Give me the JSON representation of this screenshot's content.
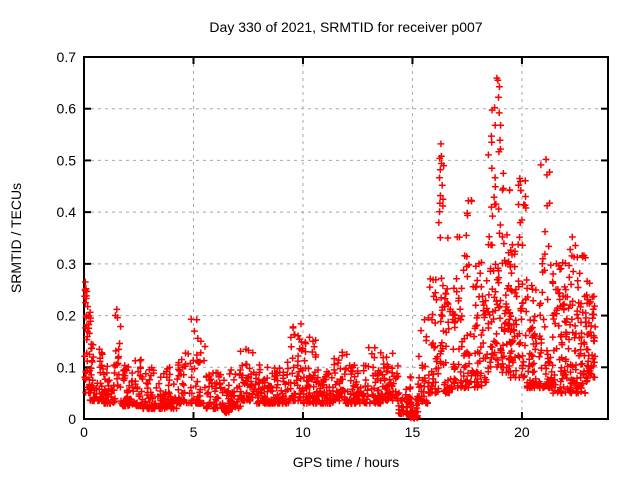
{
  "chart_data": {
    "type": "scatter",
    "title": "Day 330 of 2021, SRMTID for receiver p007",
    "xlabel": "GPS time / hours",
    "ylabel": "SRMTID / TECUs",
    "xlim": [
      0,
      23.93
    ],
    "ylim": [
      0,
      0.7
    ],
    "xticks": [
      0,
      5,
      10,
      15,
      20
    ],
    "xtick_labels": [
      "0",
      "5",
      "10",
      "15",
      "20"
    ],
    "yticks": [
      0,
      0.1,
      0.2,
      0.3,
      0.4,
      0.5,
      0.6,
      0.7
    ],
    "ytick_labels": [
      "0",
      "0.1",
      "0.2",
      "0.3",
      "0.4",
      "0.5",
      "0.6",
      "0.7"
    ],
    "grid": true,
    "legend_position": "none",
    "marker": "plus",
    "marker_color": "#ff0000",
    "grid_color": "#a8a8a8",
    "axis_color": "#000000",
    "background": "#ffffff",
    "bands_format": [
      "x_start",
      "x_end",
      "n_points",
      "y_min",
      "y_max",
      "skew_toward_min"
    ],
    "bands": [
      [
        0.02,
        0.15,
        12,
        0.08,
        0.27,
        1.2
      ],
      [
        0.05,
        0.35,
        32,
        0.05,
        0.22,
        1.5
      ],
      [
        0.25,
        0.85,
        48,
        0.035,
        0.145,
        1.9
      ],
      [
        0.85,
        1.42,
        46,
        0.03,
        0.105,
        2.0
      ],
      [
        1.42,
        1.68,
        15,
        0.06,
        0.215,
        1.3
      ],
      [
        1.68,
        2.65,
        72,
        0.025,
        0.115,
        2.3
      ],
      [
        2.65,
        4.25,
        118,
        0.02,
        0.1,
        2.4
      ],
      [
        4.25,
        4.85,
        40,
        0.03,
        0.13,
        2.1
      ],
      [
        4.85,
        5.55,
        45,
        0.03,
        0.195,
        2.3
      ],
      [
        5.55,
        6.25,
        48,
        0.02,
        0.09,
        2.2
      ],
      [
        6.25,
        6.65,
        28,
        0.012,
        0.075,
        2.0
      ],
      [
        6.65,
        7.15,
        38,
        0.02,
        0.095,
        2.2
      ],
      [
        7.15,
        7.75,
        46,
        0.035,
        0.135,
        2.1
      ],
      [
        7.75,
        8.45,
        52,
        0.03,
        0.105,
        2.2
      ],
      [
        8.45,
        9.35,
        66,
        0.03,
        0.11,
        2.2
      ],
      [
        9.35,
        9.95,
        46,
        0.035,
        0.185,
        2.4
      ],
      [
        9.95,
        10.6,
        50,
        0.03,
        0.16,
        2.6
      ],
      [
        10.6,
        11.4,
        62,
        0.03,
        0.105,
        2.2
      ],
      [
        11.4,
        11.95,
        38,
        0.035,
        0.13,
        2.2
      ],
      [
        11.95,
        12.85,
        66,
        0.03,
        0.105,
        2.2
      ],
      [
        12.85,
        13.55,
        50,
        0.03,
        0.14,
        2.2
      ],
      [
        13.55,
        14.35,
        60,
        0.035,
        0.13,
        2.0
      ],
      [
        14.35,
        14.95,
        40,
        0.008,
        0.085,
        1.8
      ],
      [
        14.9,
        15.25,
        16,
        0.002,
        0.055,
        2.4
      ],
      [
        15.04,
        15.1,
        9,
        0.001,
        0.008,
        1.0
      ],
      [
        15.25,
        15.72,
        32,
        0.03,
        0.195,
        1.9
      ],
      [
        15.72,
        16.2,
        42,
        0.05,
        0.315,
        2.1
      ],
      [
        16.2,
        16.45,
        28,
        0.1,
        0.535,
        1.5
      ],
      [
        16.45,
        16.9,
        42,
        0.05,
        0.26,
        1.9
      ],
      [
        16.9,
        17.3,
        32,
        0.06,
        0.355,
        2.1
      ],
      [
        17.3,
        17.8,
        38,
        0.06,
        0.425,
        2.1
      ],
      [
        17.8,
        18.45,
        58,
        0.06,
        0.31,
        2.1
      ],
      [
        18.45,
        18.8,
        42,
        0.09,
        0.61,
        1.7
      ],
      [
        18.8,
        19.08,
        32,
        0.1,
        0.66,
        1.5
      ],
      [
        19.08,
        19.45,
        46,
        0.09,
        0.53,
        1.8
      ],
      [
        19.45,
        19.82,
        40,
        0.08,
        0.34,
        1.9
      ],
      [
        19.82,
        20.2,
        42,
        0.08,
        0.47,
        1.9
      ],
      [
        20.2,
        20.7,
        52,
        0.06,
        0.31,
        1.9
      ],
      [
        20.7,
        21.3,
        56,
        0.06,
        0.505,
        2.3
      ],
      [
        21.3,
        22.0,
        78,
        0.05,
        0.305,
        1.6
      ],
      [
        22.0,
        22.5,
        56,
        0.05,
        0.355,
        1.8
      ],
      [
        22.5,
        23.0,
        62,
        0.05,
        0.325,
        1.5
      ],
      [
        23.0,
        23.35,
        42,
        0.08,
        0.265,
        1.4
      ]
    ],
    "peaks": [
      [
        0.06,
        0.265
      ],
      [
        0.09,
        0.252
      ],
      [
        0.11,
        0.238
      ],
      [
        0.07,
        0.225
      ],
      [
        1.5,
        0.212
      ],
      [
        1.53,
        0.196
      ],
      [
        5.15,
        0.192
      ],
      [
        7.4,
        0.135
      ],
      [
        9.55,
        0.178
      ],
      [
        10.3,
        0.158
      ],
      [
        12.0,
        0.125
      ],
      [
        13.0,
        0.138
      ],
      [
        15.55,
        0.192
      ],
      [
        16.3,
        0.532
      ],
      [
        16.32,
        0.508
      ],
      [
        16.27,
        0.482
      ],
      [
        16.36,
        0.452
      ],
      [
        16.62,
        0.35
      ],
      [
        17.05,
        0.352
      ],
      [
        17.55,
        0.422
      ],
      [
        17.5,
        0.398
      ],
      [
        18.62,
        0.535
      ],
      [
        18.75,
        0.602
      ],
      [
        18.78,
        0.568
      ],
      [
        18.9,
        0.655
      ],
      [
        18.93,
        0.622
      ],
      [
        18.96,
        0.592
      ],
      [
        19.02,
        0.522
      ],
      [
        19.15,
        0.475
      ],
      [
        19.9,
        0.465
      ],
      [
        19.95,
        0.442
      ],
      [
        21.1,
        0.502
      ],
      [
        21.14,
        0.472
      ],
      [
        22.3,
        0.352
      ],
      [
        22.9,
        0.312
      ]
    ]
  }
}
